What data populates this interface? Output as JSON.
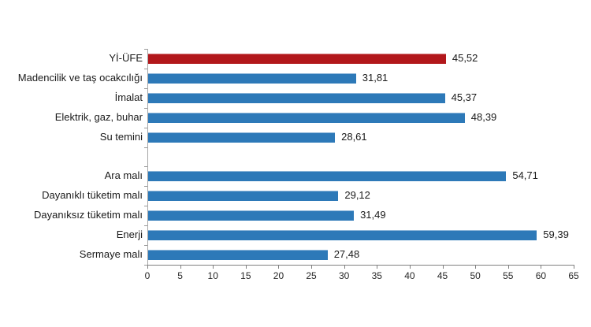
{
  "chart_data": {
    "type": "bar",
    "orientation": "horizontal",
    "categories": [
      "Yİ-ÜFE",
      "Madencilik ve taş ocakcılığı",
      "İmalat",
      "Elektrik, gaz, buhar",
      "Su temini",
      "Ara malı",
      "Dayanıklı tüketim malı",
      "Dayanıksız tüketim malı",
      "Enerji",
      "Sermaye malı"
    ],
    "values": [
      45.52,
      31.81,
      45.37,
      48.39,
      28.61,
      54.71,
      29.12,
      31.49,
      59.39,
      27.48
    ],
    "values_display": [
      "45,52",
      "31,81",
      "45,37",
      "48,39",
      "28,61",
      "54,71",
      "29,12",
      "31,49",
      "59,39",
      "27,48"
    ],
    "highlight_index": 0,
    "group_break_after_index": 4,
    "xlim": [
      0,
      65
    ],
    "xticks": [
      0,
      5,
      10,
      15,
      20,
      25,
      30,
      35,
      40,
      45,
      50,
      55,
      60,
      65
    ],
    "grid": false,
    "legend": "none",
    "colors": {
      "highlight_bar": "#b2171b",
      "default_bar": "#2d79b8",
      "x_axis": "#808080",
      "y_axis": "#a6a6a6",
      "text": "#1a1a1a",
      "background": "#ffffff"
    }
  }
}
